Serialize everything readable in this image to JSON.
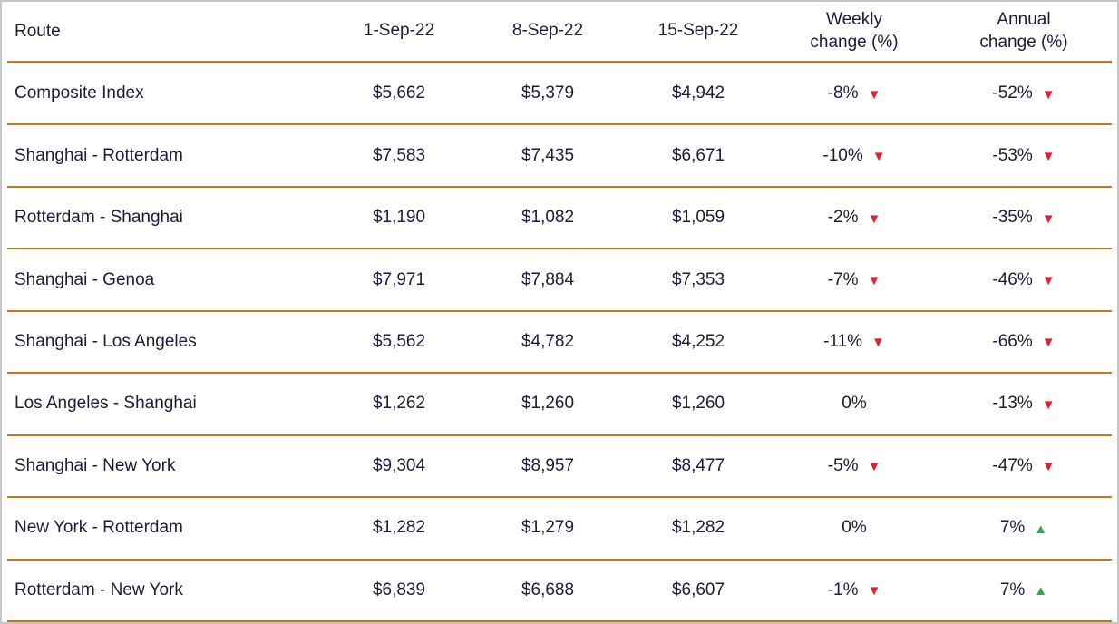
{
  "colors": {
    "line": "#c5791f",
    "text": "#1c1c3a",
    "down": "#e5202a",
    "up": "#2fa84f"
  },
  "table": {
    "headers": {
      "route": "Route",
      "dates": [
        "1-Sep-22",
        "8-Sep-22",
        "15-Sep-22"
      ],
      "weekly": [
        "Weekly",
        "change (%)"
      ],
      "annual": [
        "Annual",
        "change (%)"
      ]
    },
    "rows": [
      {
        "route": "Composite Index",
        "values": [
          "$5,662",
          "$5,379",
          "$4,942"
        ],
        "weekly": {
          "text": "-8%",
          "arrow": "▼",
          "dir": "down"
        },
        "annual": {
          "text": "-52%",
          "arrow": "▼",
          "dir": "down"
        }
      },
      {
        "route": "Shanghai - Rotterdam",
        "values": [
          "$7,583",
          "$7,435",
          "$6,671"
        ],
        "weekly": {
          "text": "-10%",
          "arrow": "▼",
          "dir": "down"
        },
        "annual": {
          "text": "-53%",
          "arrow": "▼",
          "dir": "down"
        }
      },
      {
        "route": "Rotterdam - Shanghai",
        "values": [
          "$1,190",
          "$1,082",
          "$1,059"
        ],
        "weekly": {
          "text": "-2%",
          "arrow": "▼",
          "dir": "down"
        },
        "annual": {
          "text": "-35%",
          "arrow": "▼",
          "dir": "down"
        }
      },
      {
        "route": "Shanghai - Genoa",
        "values": [
          "$7,971",
          "$7,884",
          "$7,353"
        ],
        "weekly": {
          "text": "-7%",
          "arrow": "▼",
          "dir": "down"
        },
        "annual": {
          "text": "-46%",
          "arrow": "▼",
          "dir": "down"
        }
      },
      {
        "route": "Shanghai - Los Angeles",
        "values": [
          "$5,562",
          "$4,782",
          "$4,252"
        ],
        "weekly": {
          "text": "-11%",
          "arrow": "▼",
          "dir": "down"
        },
        "annual": {
          "text": "-66%",
          "arrow": "▼",
          "dir": "down"
        }
      },
      {
        "route": "Los Angeles - Shanghai",
        "values": [
          "$1,262",
          "$1,260",
          "$1,260"
        ],
        "weekly": {
          "text": "0%",
          "arrow": "",
          "dir": "none"
        },
        "annual": {
          "text": "-13%",
          "arrow": "▼",
          "dir": "down"
        }
      },
      {
        "route": "Shanghai - New York",
        "values": [
          "$9,304",
          "$8,957",
          "$8,477"
        ],
        "weekly": {
          "text": "-5%",
          "arrow": "▼",
          "dir": "down"
        },
        "annual": {
          "text": "-47%",
          "arrow": "▼",
          "dir": "down"
        }
      },
      {
        "route": "New York - Rotterdam",
        "values": [
          "$1,282",
          "$1,279",
          "$1,282"
        ],
        "weekly": {
          "text": "0%",
          "arrow": "",
          "dir": "none"
        },
        "annual": {
          "text": "7%",
          "arrow": "▲",
          "dir": "up"
        }
      },
      {
        "route": "Rotterdam - New York",
        "values": [
          "$6,839",
          "$6,688",
          "$6,607"
        ],
        "weekly": {
          "text": "-1%",
          "arrow": "▼",
          "dir": "down"
        },
        "annual": {
          "text": "7%",
          "arrow": "▲",
          "dir": "up"
        }
      }
    ]
  },
  "chart_data": {
    "type": "table",
    "columns": [
      "Route",
      "1-Sep-22",
      "8-Sep-22",
      "15-Sep-22",
      "Weekly change (%)",
      "Annual change (%)"
    ],
    "rows": [
      [
        "Composite Index",
        5662,
        5379,
        4942,
        -8,
        -52
      ],
      [
        "Shanghai - Rotterdam",
        7583,
        7435,
        6671,
        -10,
        -53
      ],
      [
        "Rotterdam - Shanghai",
        1190,
        1082,
        1059,
        -2,
        -35
      ],
      [
        "Shanghai - Genoa",
        7971,
        7884,
        7353,
        -7,
        -46
      ],
      [
        "Shanghai - Los Angeles",
        5562,
        4782,
        4252,
        -11,
        -66
      ],
      [
        "Los Angeles - Shanghai",
        1262,
        1260,
        1260,
        0,
        -13
      ],
      [
        "Shanghai - New York",
        9304,
        8957,
        8477,
        -5,
        -47
      ],
      [
        "New York - Rotterdam",
        1282,
        1279,
        1282,
        0,
        7
      ],
      [
        "Rotterdam - New York",
        6839,
        6688,
        6607,
        -1,
        7
      ]
    ]
  }
}
